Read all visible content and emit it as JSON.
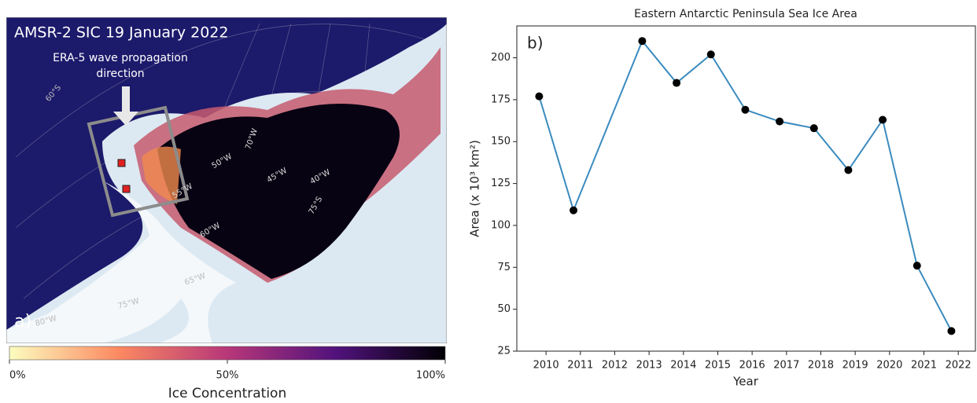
{
  "map": {
    "title": "AMSR-2 SIC 19 January 2022",
    "arrow_label_1": "ERA-5 wave propagation",
    "arrow_label_2": "direction",
    "panel_label": "a)",
    "grid_labels": [
      "60°S",
      "50°W",
      "45°W",
      "40°W",
      "55°W",
      "60°W",
      "65°W",
      "70°W",
      "75°S",
      "75°W",
      "80°W"
    ]
  },
  "colorbar": {
    "label": "Ice Concentration",
    "lim": [
      0,
      100
    ],
    "ticks": [
      {
        "value": 0,
        "label": "0%"
      },
      {
        "value": 50,
        "label": "50%"
      },
      {
        "value": 100,
        "label": "100%"
      }
    ]
  },
  "chart_data": {
    "type": "line",
    "title": "Eastern Antarctic Peninsula Sea Ice Area",
    "panel_label": "b)",
    "x_label": "Year",
    "y_label": "Area (x 10³ km²)",
    "x": [
      2009.8,
      2010.8,
      2012.8,
      2013.8,
      2014.8,
      2015.8,
      2016.8,
      2017.8,
      2018.8,
      2019.8,
      2020.8,
      2021.8
    ],
    "series": [
      {
        "color": "#3b8bbf",
        "values": [
          177,
          109,
          210,
          185,
          202,
          169,
          162,
          158,
          133,
          163,
          76,
          37
        ]
      }
    ],
    "xlim": [
      2009.15,
      2022.5
    ],
    "xticks": [
      2010,
      2011,
      2012,
      2013,
      2014,
      2015,
      2016,
      2017,
      2018,
      2019,
      2020,
      2021,
      2022
    ],
    "ylim": [
      25,
      219
    ],
    "yticks": [
      25,
      50,
      75,
      100,
      125,
      150,
      175,
      200
    ]
  }
}
